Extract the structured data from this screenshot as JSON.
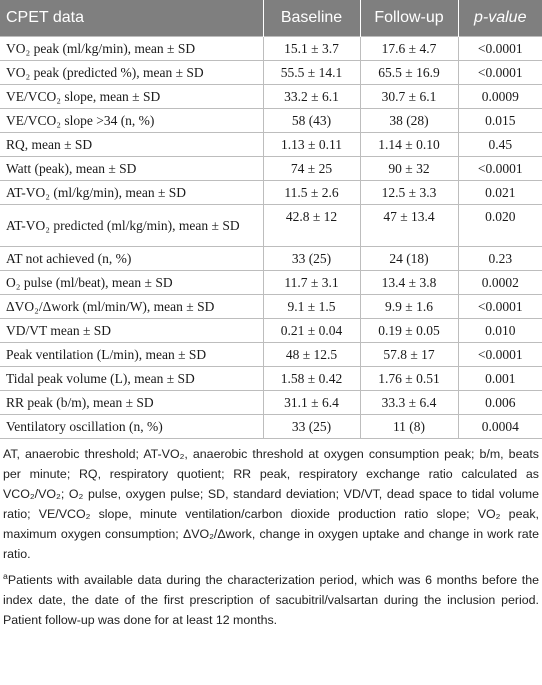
{
  "table": {
    "headers": {
      "label": "CPET data",
      "baseline": "Baseline",
      "followup": "Follow-up",
      "pvalue": "p-value"
    },
    "rows": [
      {
        "label": "VO₂ peak (ml/kg/min), mean ± SD",
        "baseline": "15.1 ± 3.7",
        "followup": "17.6 ± 4.7",
        "p": "<0.0001"
      },
      {
        "label": "VO₂ peak (predicted %), mean ± SD",
        "baseline": "55.5 ± 14.1",
        "followup": "65.5 ± 16.9",
        "p": "<0.0001"
      },
      {
        "label": "VE/VCO₂ slope, mean ± SD",
        "baseline": "33.2 ± 6.1",
        "followup": "30.7 ± 6.1",
        "p": "0.0009"
      },
      {
        "label": "VE/VCO₂ slope >34 (n, %)",
        "baseline": "58 (43)",
        "followup": "38 (28)",
        "p": "0.015"
      },
      {
        "label": "RQ, mean ± SD",
        "baseline": "1.13 ± 0.11",
        "followup": "1.14 ± 0.10",
        "p": "0.45"
      },
      {
        "label": "Watt (peak), mean ± SD",
        "baseline": "74 ± 25",
        "followup": "90 ± 32",
        "p": "<0.0001"
      },
      {
        "label": "AT-VO₂ (ml/kg/min), mean ± SD",
        "baseline": "11.5 ± 2.6",
        "followup": "12.5 ± 3.3",
        "p": "0.021"
      },
      {
        "label": "AT-VO₂ predicted (ml/kg/min), mean ± SD",
        "baseline": "42.8 ± 12",
        "followup": "47 ± 13.4",
        "p": "0.020"
      },
      {
        "label": "AT not achieved (n, %)",
        "baseline": "33 (25)",
        "followup": "24 (18)",
        "p": "0.23"
      },
      {
        "label": "O₂ pulse (ml/beat), mean ± SD",
        "baseline": "11.7 ± 3.1",
        "followup": "13.4 ± 3.8",
        "p": "0.0002"
      },
      {
        "label": "ΔVO₂/Δwork (ml/min/W), mean ± SD",
        "baseline": "9.1 ± 1.5",
        "followup": "9.9 ± 1.6",
        "p": "<0.0001"
      },
      {
        "label": "VD/VT mean ± SD",
        "baseline": "0.21 ± 0.04",
        "followup": "0.19 ± 0.05",
        "p": "0.010"
      },
      {
        "label": "Peak ventilation (L/min), mean ± SD",
        "baseline": "48 ± 12.5",
        "followup": "57.8 ± 17",
        "p": "<0.0001"
      },
      {
        "label": "Tidal peak volume (L), mean ± SD",
        "baseline": "1.58 ± 0.42",
        "followup": "1.76 ± 0.51",
        "p": "0.001"
      },
      {
        "label": "RR peak (b/m), mean ± SD",
        "baseline": "31.1 ± 6.4",
        "followup": "33.3 ± 6.4",
        "p": "0.006"
      },
      {
        "label": "Ventilatory oscillation (n, %)",
        "baseline": "33 (25)",
        "followup": "11 (8)",
        "p": "0.0004"
      }
    ]
  },
  "footnotes": {
    "abbreviations": "AT, anaerobic threshold; AT-VO₂, anaerobic threshold at oxygen consumption peak; b/m, beats per minute; RQ, respiratory quotient; RR peak, respiratory exchange ratio calculated as VCO₂/VO₂; O₂ pulse, oxygen pulse; SD, standard deviation; VD/VT, dead space to tidal volume ratio; VE/VCO₂ slope, minute ventilation/carbon dioxide production ratio slope; VO₂ peak, maximum oxygen consumption; ΔVO₂/Δwork, change in oxygen uptake and change in work rate ratio.",
    "marker": "a",
    "note_a": "Patients with available data during the characterization period, which was 6 months before the index date, the date of the first prescription of sacubitril/valsartan during the inclusion period. Patient follow-up was done for at least 12 months."
  }
}
